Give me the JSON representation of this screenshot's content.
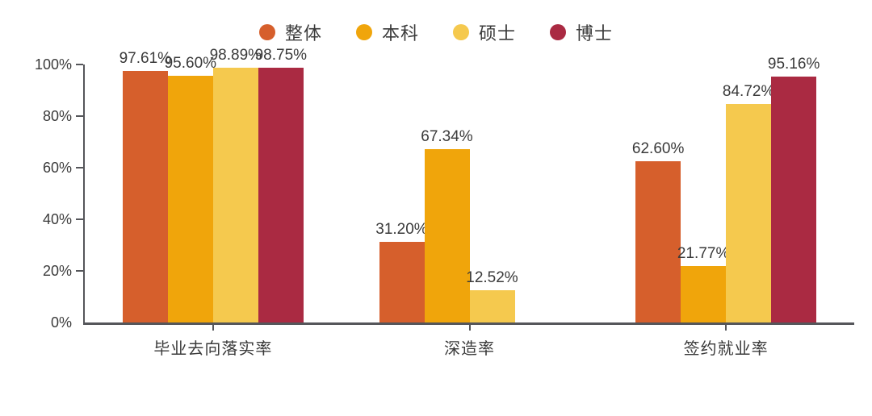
{
  "chart_data": {
    "type": "bar",
    "title": "",
    "categories": [
      "毕业去向落实率",
      "深造率",
      "签约就业率"
    ],
    "series": [
      {
        "name": "整体",
        "color": "#D65F2C",
        "values": [
          97.61,
          31.2,
          62.6
        ]
      },
      {
        "name": "本科",
        "color": "#F0A50B",
        "values": [
          95.6,
          67.34,
          21.77
        ]
      },
      {
        "name": "硕士",
        "color": "#F5C94E",
        "values": [
          98.89,
          12.52,
          84.72
        ]
      },
      {
        "name": "博士",
        "color": "#AA2A42",
        "values": [
          98.75,
          null,
          95.16
        ]
      }
    ],
    "value_labels": [
      [
        "97.61%",
        "95.60%",
        "98.89%",
        "98.75%"
      ],
      [
        "31.20%",
        "67.34%",
        "12.52%",
        null
      ],
      [
        "62.60%",
        "21.77%",
        "84.72%",
        "95.16%"
      ]
    ],
    "xlabel": "",
    "ylabel": "",
    "ylim": [
      0,
      100
    ],
    "yticks": [
      "0%",
      "20%",
      "40%",
      "60%",
      "80%",
      "100%"
    ],
    "grid": false,
    "legend_position": "top",
    "axis_color": "#55565a",
    "text_color": "#3b3b3b"
  }
}
